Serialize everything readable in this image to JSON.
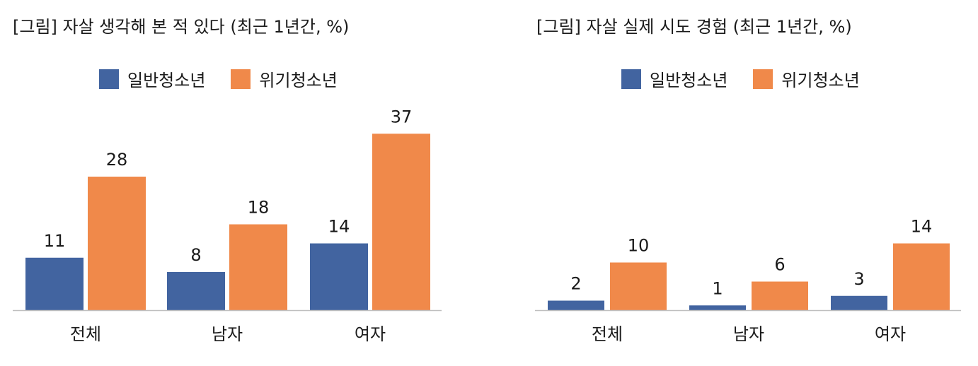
{
  "colors": {
    "series1": "#4264a0",
    "series2": "#f0894a",
    "axis": "#bfbfbf"
  },
  "chart_data": [
    {
      "type": "bar",
      "title": "[그림] 자살 생각해 본 적 있다 (최근 1년간, %)",
      "categories": [
        "전체",
        "남자",
        "여자"
      ],
      "series": [
        {
          "name": "일반청소년",
          "values": [
            11,
            8,
            14
          ]
        },
        {
          "name": "위기청소년",
          "values": [
            28,
            18,
            37
          ]
        }
      ],
      "ylim": [
        0,
        40
      ],
      "grid": false,
      "legend": "top"
    },
    {
      "type": "bar",
      "title": "[그림] 자살 실제 시도 경험 (최근 1년간, %)",
      "categories": [
        "전체",
        "남자",
        "여자"
      ],
      "series": [
        {
          "name": "일반청소년",
          "values": [
            2,
            1,
            3
          ]
        },
        {
          "name": "위기청소년",
          "values": [
            10,
            6,
            14
          ]
        }
      ],
      "ylim": [
        0,
        40
      ],
      "grid": false,
      "legend": "top"
    }
  ]
}
